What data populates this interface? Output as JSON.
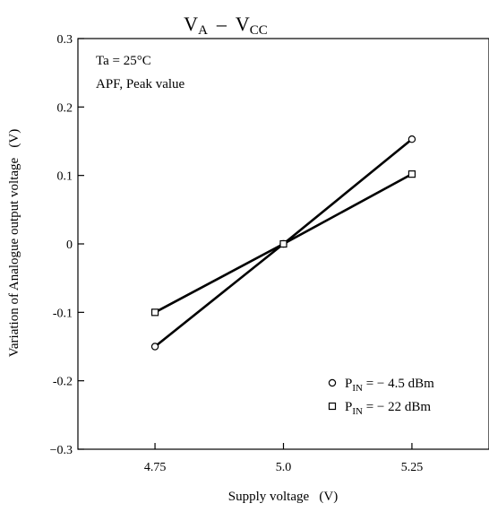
{
  "chart_data": {
    "type": "line",
    "title": {
      "main_a": "V",
      "sub_a": "A",
      "dash": "–",
      "main_b": "V",
      "sub_b": "CC"
    },
    "xlabel": "Supply voltage   (V)",
    "ylabel": "Variation of Analogue output voltage   (V)",
    "xlim": [
      4.6,
      5.4
    ],
    "ylim": [
      -0.3,
      0.3
    ],
    "x_ticks": [
      {
        "value": 4.75,
        "label": "4.75"
      },
      {
        "value": 5.0,
        "label": "5.0"
      },
      {
        "value": 5.25,
        "label": "5.25"
      }
    ],
    "y_ticks": [
      {
        "value": 0.3,
        "label": "0.3"
      },
      {
        "value": 0.2,
        "label": "0.2"
      },
      {
        "value": 0.1,
        "label": "0.1"
      },
      {
        "value": 0,
        "label": "0"
      },
      {
        "value": -0.1,
        "label": "-0.1"
      },
      {
        "value": -0.2,
        "label": "-0.2"
      },
      {
        "value": -0.3,
        "label": "−0.3"
      }
    ],
    "annotations": [
      "Ta = 25°C",
      "APF, Peak value"
    ],
    "series": [
      {
        "marker": "circle",
        "legend": {
          "p": "P",
          "sub": "IN",
          "rest": " = − 4.5 dBm"
        },
        "x": [
          4.75,
          5.0,
          5.25
        ],
        "y": [
          -0.15,
          0.0,
          0.153
        ]
      },
      {
        "marker": "square",
        "legend": {
          "p": "P",
          "sub": "IN",
          "rest": " = − 22 dBm"
        },
        "x": [
          4.75,
          5.0,
          5.25
        ],
        "y": [
          -0.1,
          0.0,
          0.102
        ]
      }
    ],
    "legend_position": "bottom-right",
    "grid": false
  }
}
